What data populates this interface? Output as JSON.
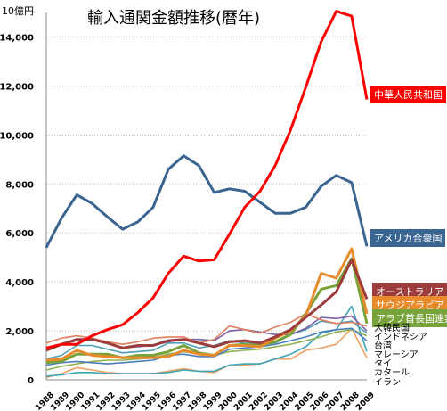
{
  "unit_label": "10億円",
  "chart_data": {
    "type": "line",
    "title": "輸入通関金額推移(暦年)",
    "ylim": [
      0,
      15000
    ],
    "yticks": [
      0,
      2000,
      4000,
      6000,
      8000,
      10000,
      12000,
      14000
    ],
    "ytick_labels": [
      "0",
      "2,000",
      "4,000",
      "6,000",
      "8,000",
      "10,000",
      "12,000",
      "14,000"
    ],
    "grid": true,
    "x": [
      "1988",
      "1989",
      "1990",
      "1991",
      "1992",
      "1993",
      "1994",
      "1995",
      "1996",
      "1997",
      "1998",
      "1999",
      "2000",
      "2001",
      "2002",
      "2003",
      "2004",
      "2005",
      "2006",
      "2007",
      "2008",
      "2009"
    ],
    "series": [
      {
        "name": "中華人民共和国",
        "color": "#ff0000",
        "label_style": "box",
        "values": [
          1300,
          1450,
          1450,
          1800,
          2050,
          2250,
          2750,
          3350,
          4350,
          5050,
          4850,
          4900,
          5950,
          7050,
          7700,
          8750,
          10200,
          11950,
          13800,
          15050,
          14850,
          11450
        ]
      },
      {
        "name": "アメリカ合衆国",
        "color": "#3a6591",
        "label_style": "box",
        "values": [
          5400,
          6600,
          7550,
          7200,
          6650,
          6150,
          6450,
          7050,
          8600,
          9150,
          8750,
          7650,
          7800,
          7700,
          7250,
          6800,
          6800,
          7050,
          7900,
          8350,
          8050,
          5450
        ]
      },
      {
        "name": "オーストラリア",
        "color": "#9c3c3c",
        "label_style": "box",
        "values": [
          1200,
          1450,
          1650,
          1650,
          1500,
          1300,
          1400,
          1400,
          1600,
          1650,
          1500,
          1350,
          1550,
          1600,
          1500,
          1750,
          2050,
          2550,
          3050,
          3600,
          4900,
          3300
        ]
      },
      {
        "name": "サウジアラビア",
        "color": "#e98a2c",
        "label_style": "box",
        "values": [
          800,
          850,
          1200,
          1000,
          950,
          900,
          900,
          900,
          950,
          1200,
          1050,
          1000,
          1400,
          1400,
          1350,
          1700,
          2000,
          2600,
          4350,
          4150,
          5350,
          2700
        ]
      },
      {
        "name": "アラブ首長国連邦",
        "color": "#77a33a",
        "label_style": "box",
        "values": [
          700,
          750,
          1050,
          1050,
          1050,
          900,
          1000,
          1000,
          1150,
          1400,
          1100,
          1000,
          1400,
          1450,
          1400,
          1550,
          1850,
          2700,
          3700,
          3850,
          4950,
          2300
        ]
      },
      {
        "name": "大韓民国",
        "color": "#e08060",
        "label_style": "plain",
        "values": [
          1500,
          1700,
          1800,
          1700,
          1550,
          1450,
          1550,
          1700,
          1750,
          1750,
          1500,
          1650,
          2200,
          2050,
          1900,
          2150,
          2350,
          2700,
          2450,
          2300,
          2350,
          2200
        ]
      },
      {
        "name": "インドネシア",
        "color": "#7d5fa1",
        "label_style": "plain",
        "values": [
          1250,
          1450,
          1600,
          1700,
          1500,
          1300,
          1350,
          1400,
          1550,
          1650,
          1650,
          1600,
          2000,
          2050,
          1950,
          1850,
          1850,
          2100,
          2550,
          2500,
          2600,
          2000
        ]
      },
      {
        "name": "台湾",
        "color": "#4f9fb4",
        "label_style": "plain",
        "values": [
          850,
          1000,
          1400,
          1400,
          1250,
          1100,
          1150,
          1200,
          1500,
          1500,
          1300,
          1400,
          1600,
          1500,
          1450,
          1500,
          1850,
          2050,
          2400,
          2300,
          2400,
          1900
        ]
      },
      {
        "name": "マレーシア",
        "color": "#4a7ebb",
        "label_style": "plain",
        "values": [
          600,
          700,
          750,
          700,
          650,
          700,
          750,
          800,
          1000,
          1050,
          950,
          950,
          1250,
          1300,
          1350,
          1450,
          1600,
          1750,
          1950,
          2050,
          2100,
          1600
        ]
      },
      {
        "name": "タイ",
        "color": "#8fb350",
        "label_style": "plain",
        "values": [
          400,
          550,
          650,
          750,
          800,
          800,
          850,
          900,
          1050,
          1150,
          1050,
          1000,
          1150,
          1200,
          1250,
          1350,
          1450,
          1600,
          1750,
          1950,
          2050,
          1800
        ]
      },
      {
        "name": "カタール",
        "color": "#3ca5b8",
        "label_style": "plain",
        "values": [
          150,
          200,
          300,
          300,
          250,
          250,
          250,
          250,
          300,
          400,
          350,
          350,
          600,
          650,
          650,
          850,
          1050,
          1350,
          1900,
          2050,
          3000,
          1150
        ]
      },
      {
        "name": "イラン",
        "color": "#f0a060",
        "label_style": "plain",
        "values": [
          100,
          250,
          500,
          400,
          300,
          250,
          250,
          250,
          350,
          450,
          350,
          300,
          600,
          600,
          650,
          850,
          850,
          1200,
          1300,
          1450,
          2100,
          900
        ]
      }
    ]
  }
}
